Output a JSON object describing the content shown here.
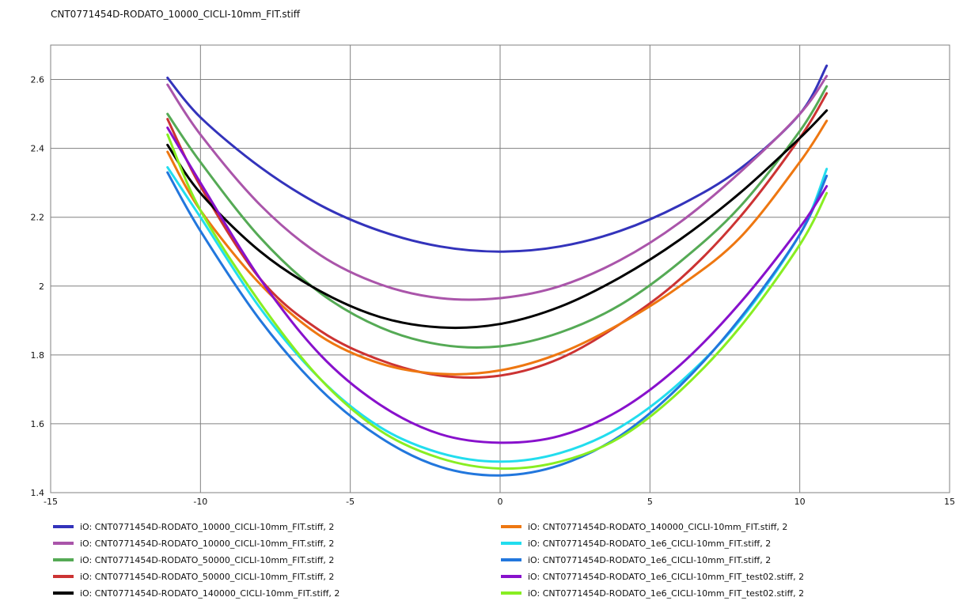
{
  "chart_data": {
    "type": "line",
    "title": "CNT0771454D-RODATO_10000_CICLI-10mm_FIT.stiff",
    "xlabel": "",
    "ylabel": "",
    "xlim": [
      -15,
      15
    ],
    "ylim": [
      1.4,
      2.7
    ],
    "xticks": [
      -15,
      -10,
      -5,
      0,
      5,
      10,
      15
    ],
    "yticks": [
      1.4,
      1.6,
      1.8,
      2,
      2.2,
      2.4,
      2.6
    ],
    "grid": true,
    "legend_position": "bottom",
    "series": [
      {
        "name": "iO: CNT0771454D-RODATO_10000_CICLI-10mm_FIT.stiff, 2",
        "color": "#3333bb",
        "x": [
          -11.1,
          -10,
          -8,
          -6,
          -4,
          -2,
          0,
          2,
          4,
          6,
          8,
          10,
          10.9
        ],
        "y": [
          2.605,
          2.49,
          2.345,
          2.235,
          2.16,
          2.115,
          2.1,
          2.115,
          2.16,
          2.235,
          2.34,
          2.5,
          2.64
        ]
      },
      {
        "name": "iO: CNT0771454D-RODATO_10000_CICLI-10mm_FIT.stiff, 2",
        "color": "#aa55aa",
        "x": [
          -11.1,
          -10,
          -8,
          -6,
          -4,
          -2,
          0,
          2,
          4,
          6,
          8,
          10,
          10.9
        ],
        "y": [
          2.585,
          2.44,
          2.235,
          2.09,
          2.005,
          1.965,
          1.965,
          2.0,
          2.075,
          2.185,
          2.33,
          2.5,
          2.61
        ]
      },
      {
        "name": "iO: CNT0771454D-RODATO_50000_CICLI-10mm_FIT.stiff, 2",
        "color": "#55aa55",
        "x": [
          -11.1,
          -10,
          -8,
          -6,
          -4,
          -2,
          0,
          2,
          4,
          6,
          8,
          10,
          10.9
        ],
        "y": [
          2.5,
          2.36,
          2.14,
          1.98,
          1.88,
          1.83,
          1.825,
          1.865,
          1.945,
          2.07,
          2.23,
          2.45,
          2.58
        ]
      },
      {
        "name": "iO: CNT0771454D-RODATO_50000_CICLI-10mm_FIT.stiff, 2",
        "color": "#cc3333",
        "x": [
          -11.1,
          -10,
          -8,
          -6,
          -4,
          -2,
          0,
          2,
          4,
          6,
          8,
          10,
          10.9
        ],
        "y": [
          2.485,
          2.29,
          2.02,
          1.87,
          1.785,
          1.74,
          1.74,
          1.79,
          1.89,
          2.02,
          2.2,
          2.43,
          2.56
        ]
      },
      {
        "name": "iO: CNT0771454D-RODATO_140000_CICLI-10mm_FIT.stiff, 2",
        "color": "#000000",
        "x": [
          -11.1,
          -10,
          -8,
          -6,
          -4,
          -2,
          0,
          2,
          4,
          6,
          8,
          10,
          10.9
        ],
        "y": [
          2.41,
          2.27,
          2.1,
          1.985,
          1.91,
          1.88,
          1.89,
          1.94,
          2.025,
          2.135,
          2.27,
          2.43,
          2.51
        ]
      },
      {
        "name": "iO: CNT0771454D-RODATO_140000_CICLI-10mm_FIT.stiff, 2",
        "color": "#ee7711",
        "x": [
          -11.1,
          -10,
          -8,
          -6,
          -4,
          -2,
          0,
          2,
          4,
          6,
          8,
          10,
          10.9
        ],
        "y": [
          2.39,
          2.22,
          2.005,
          1.855,
          1.775,
          1.745,
          1.755,
          1.805,
          1.89,
          2.0,
          2.14,
          2.36,
          2.48
        ]
      },
      {
        "name": "iO: CNT0771454D-RODATO_1e6_CICLI-10mm_FIT.stiff, 2",
        "color": "#22ddee",
        "x": [
          -11.1,
          -10,
          -8,
          -6,
          -4,
          -2,
          0,
          2,
          4,
          6,
          8,
          10,
          10.9
        ],
        "y": [
          2.345,
          2.2,
          1.935,
          1.73,
          1.59,
          1.515,
          1.49,
          1.515,
          1.59,
          1.72,
          1.9,
          2.15,
          2.34
        ]
      },
      {
        "name": "iO: CNT0771454D-RODATO_1e6_CICLI-10mm_FIT.stiff, 2",
        "color": "#2277dd",
        "x": [
          -11.1,
          -10,
          -8,
          -6,
          -4,
          -2,
          0,
          2,
          4,
          6,
          8,
          10,
          10.9
        ],
        "y": [
          2.33,
          2.16,
          1.9,
          1.7,
          1.56,
          1.475,
          1.45,
          1.48,
          1.565,
          1.71,
          1.905,
          2.15,
          2.32
        ]
      },
      {
        "name": "iO: CNT0771454D-RODATO_1e6_CICLI-10mm_FIT_test02.stiff, 2",
        "color": "#8811cc",
        "x": [
          -11.1,
          -10,
          -8,
          -6,
          -4,
          -2,
          0,
          2,
          4,
          6,
          8,
          10,
          10.9
        ],
        "y": [
          2.46,
          2.3,
          2.02,
          1.8,
          1.655,
          1.57,
          1.545,
          1.565,
          1.64,
          1.77,
          1.95,
          2.17,
          2.29
        ]
      },
      {
        "name": "iO: CNT0771454D-RODATO_1e6_CICLI-10mm_FIT_test02.stiff, 2",
        "color": "#88ee22",
        "x": [
          -11.1,
          -10,
          -8,
          -6,
          -4,
          -2,
          0,
          2,
          4,
          6,
          8,
          10,
          10.9
        ],
        "y": [
          2.44,
          2.22,
          1.95,
          1.73,
          1.58,
          1.5,
          1.47,
          1.49,
          1.56,
          1.695,
          1.88,
          2.12,
          2.27
        ]
      }
    ]
  }
}
